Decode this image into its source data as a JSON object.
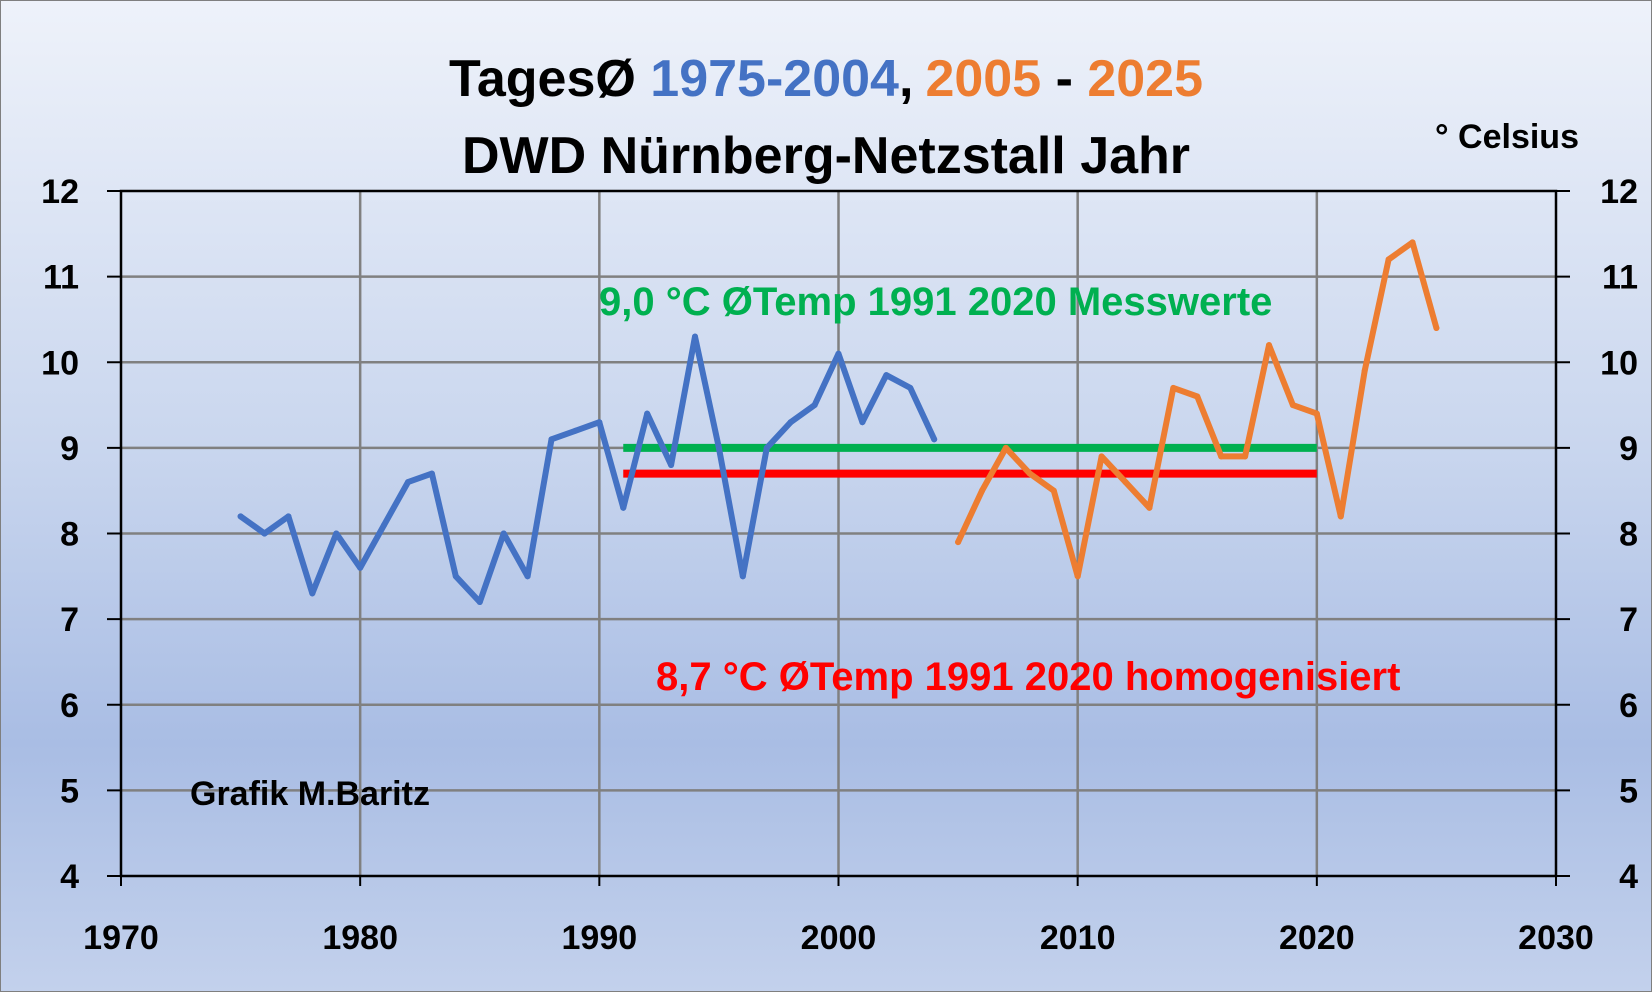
{
  "chart_data": {
    "type": "line",
    "title": {
      "prefix": "TagesØ ",
      "period1": "1975-2004",
      "comma": ",",
      "period2a": "2005",
      "dash": " - ",
      "period2b": "2025"
    },
    "subtitle": "DWD Nürnberg-Netzstall Jahr",
    "unit_label": "° Celsius",
    "credit": "Grafik M.Baritz",
    "xlim": [
      1970,
      2030
    ],
    "ylim": [
      4,
      12
    ],
    "x_ticks": [
      "1970",
      "1980",
      "1990",
      "2000",
      "2010",
      "2020",
      "2030"
    ],
    "y_ticks": [
      "4",
      "5",
      "6",
      "7",
      "8",
      "9",
      "10",
      "11",
      "12"
    ],
    "grid": true,
    "series": [
      {
        "color": "#4472c4",
        "x": [
          1975,
          1976,
          1977,
          1978,
          1979,
          1980,
          1981,
          1982,
          1983,
          1984,
          1985,
          1986,
          1987,
          1988,
          1989,
          1990,
          1991,
          1992,
          1993,
          1994,
          1995,
          1996,
          1997,
          1998,
          1999,
          2000,
          2001,
          2002,
          2003,
          2004
        ],
        "y": [
          8.2,
          8.0,
          8.2,
          7.3,
          8.0,
          7.6,
          8.1,
          8.6,
          8.7,
          7.5,
          7.2,
          8.0,
          7.5,
          9.1,
          9.2,
          9.3,
          8.3,
          9.4,
          8.8,
          10.3,
          9.0,
          7.5,
          9.0,
          9.3,
          9.5,
          10.1,
          9.3,
          9.85,
          9.7,
          9.1
        ]
      },
      {
        "color": "#ed7d31",
        "x": [
          2005,
          2006,
          2007,
          2008,
          2009,
          2010,
          2011,
          2012,
          2013,
          2014,
          2015,
          2016,
          2017,
          2018,
          2019,
          2020,
          2021,
          2022,
          2023,
          2024,
          2025
        ],
        "y": [
          7.9,
          8.5,
          9.0,
          8.7,
          8.5,
          7.5,
          8.9,
          8.6,
          8.3,
          9.7,
          9.6,
          8.9,
          8.9,
          10.2,
          9.5,
          9.4,
          8.2,
          9.9,
          11.2,
          11.4,
          10.4
        ]
      }
    ],
    "reference_lines": [
      {
        "label": "9,0 °C ØTemp 1991 2020 Messwerte",
        "value": 9.0,
        "x_range": [
          1991,
          2020
        ],
        "color": "#00b050"
      },
      {
        "label": "8,7 °C ØTemp 1991 2020 homogenisiert",
        "value": 8.7,
        "x_range": [
          1991,
          2020
        ],
        "color": "#ff0000"
      }
    ]
  }
}
